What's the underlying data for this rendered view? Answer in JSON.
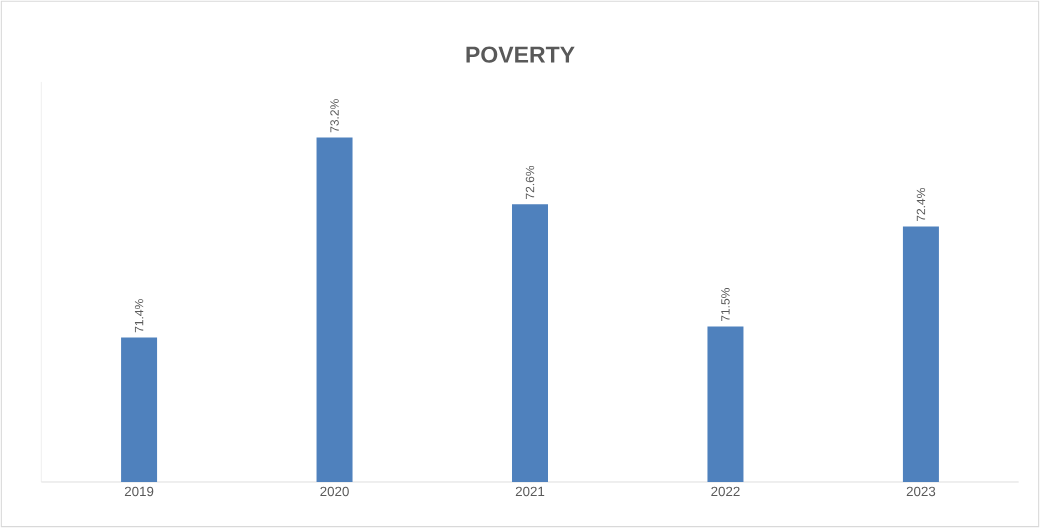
{
  "chart_data": {
    "type": "bar",
    "title": "POVERTY",
    "categories": [
      "2019",
      "2020",
      "2021",
      "2022",
      "2023"
    ],
    "values": [
      71.4,
      73.2,
      72.6,
      71.5,
      72.4
    ],
    "value_labels": [
      "71.4%",
      "73.2%",
      "72.6%",
      "71.5%",
      "72.4%"
    ],
    "color": "#4f81bd",
    "ylim": [
      70.1,
      73.7
    ]
  }
}
